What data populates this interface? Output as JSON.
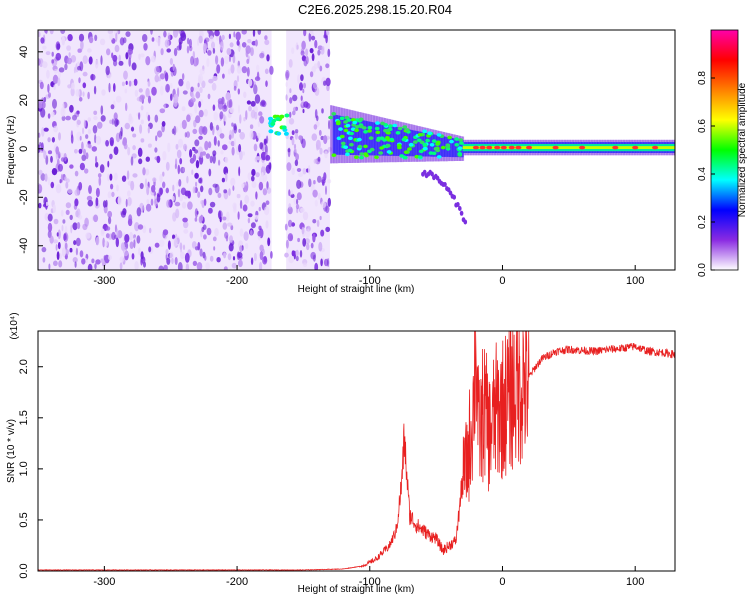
{
  "title": "C2E6.2025.298.15.20.R04",
  "chart_data": [
    {
      "type": "heatmap",
      "xlabel": "Height of straight line (km)",
      "ylabel": "Frequency (Hz)",
      "xlim": [
        -350,
        130
      ],
      "ylim": [
        -50,
        49
      ],
      "xticks": [
        -300,
        -200,
        -100,
        0,
        100
      ],
      "yticks": [
        -40,
        -20,
        0,
        20,
        40
      ],
      "colorbar": {
        "label": "Normalized spectral amplitude",
        "range": [
          0.0,
          1.0
        ],
        "ticks": [
          "0.0",
          "0.2",
          "0.4",
          "0.6",
          "0.8"
        ],
        "colors": [
          "#ffffff",
          "#8a2be2",
          "#0000ff",
          "#00ffff",
          "#00ff00",
          "#ffff00",
          "#ff8000",
          "#ff0000",
          "#ff00aa"
        ]
      },
      "regions": [
        {
          "x": [
            -350,
            -174
          ],
          "y": [
            -50,
            49
          ],
          "amplitude": 0.15
        },
        {
          "x": [
            -163,
            -130
          ],
          "y": [
            -50,
            49
          ],
          "amplitude": 0.12
        },
        {
          "x": [
            -175,
            -162
          ],
          "y": [
            6,
            14
          ],
          "amplitude": 0.5
        },
        {
          "x": [
            -130,
            -30
          ],
          "y": [
            -10,
            12
          ],
          "amplitude": 0.35
        },
        {
          "x": [
            -30,
            130
          ],
          "y": [
            -3,
            3
          ],
          "amplitude": 0.55
        }
      ],
      "streak": {
        "x": [
          -60,
          -28
        ],
        "y": [
          -10,
          -30
        ]
      }
    },
    {
      "type": "line",
      "xlabel": "Height of straight line (km)",
      "ylabel": "SNR (10 * v/v)",
      "multiplier": "(x10⁴)",
      "xlim": [
        -350,
        130
      ],
      "ylim": [
        0,
        2.35
      ],
      "xticks": [
        -300,
        -200,
        -100,
        0,
        100
      ],
      "yticks": [
        "0.0",
        "0.5",
        "1.0",
        "1.5",
        "2.0"
      ],
      "color": "#e82020",
      "x": [
        -350,
        -300,
        -250,
        -200,
        -150,
        -120,
        -105,
        -95,
        -85,
        -80,
        -76,
        -74,
        -70,
        -65,
        -60,
        -55,
        -50,
        -45,
        -40,
        -35,
        -30,
        -26,
        -22,
        -20,
        -18,
        -14,
        -10,
        -5,
        0,
        5,
        10,
        15,
        20,
        25,
        30,
        40,
        50,
        60,
        70,
        80,
        90,
        100,
        110,
        120,
        130
      ],
      "values": [
        0.01,
        0.01,
        0.01,
        0.01,
        0.01,
        0.02,
        0.05,
        0.12,
        0.25,
        0.4,
        0.85,
        1.3,
        0.55,
        0.45,
        0.4,
        0.35,
        0.32,
        0.2,
        0.25,
        0.3,
        0.9,
        1.1,
        1.6,
        2.35,
        1.3,
        1.6,
        1.35,
        1.55,
        1.6,
        1.7,
        1.8,
        1.85,
        1.9,
        2.0,
        2.08,
        2.15,
        2.17,
        2.16,
        2.15,
        2.17,
        2.18,
        2.2,
        2.15,
        2.14,
        2.12
      ]
    }
  ]
}
